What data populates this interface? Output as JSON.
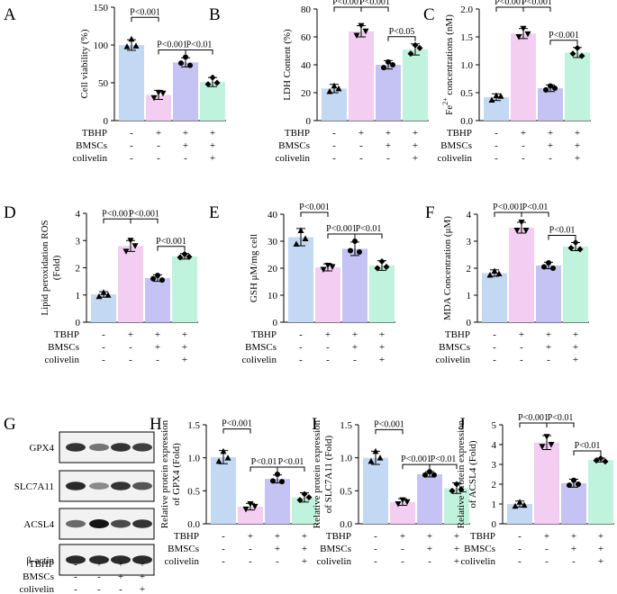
{
  "figure": {
    "row_labels": [
      "TBHP",
      "BMSCs",
      "colivelin"
    ],
    "signs": [
      [
        "-",
        "+",
        "+",
        "+"
      ],
      [
        "-",
        "-",
        "+",
        "+"
      ],
      [
        "-",
        "-",
        "-",
        "+"
      ]
    ],
    "colors": {
      "bar1": "#c3d9f3",
      "bar2": "#f4cdf2",
      "bar3": "#c4c3f4",
      "bar4": "#bff3dd",
      "error": "#000000"
    }
  },
  "chart_data": [
    {
      "panel": "A",
      "type": "bar",
      "ylabel": "Cell viability (%)",
      "ylim": [
        0,
        150
      ],
      "ticks": [
        0,
        50,
        100,
        150
      ],
      "values": [
        100,
        34,
        77,
        51
      ],
      "errors": [
        7,
        6,
        6,
        6
      ],
      "points": [
        [
          108,
          98,
          99
        ],
        [
          37,
          30,
          36
        ],
        [
          84,
          76,
          73
        ],
        [
          57,
          48,
          50
        ]
      ],
      "brackets": [
        {
          "from": 0,
          "to": 1,
          "label": "P<0.001",
          "level": 1
        },
        {
          "from": 1,
          "to": 2,
          "label": "P<0.001",
          "level": 0
        },
        {
          "from": 2,
          "to": 3,
          "label": "P<0.01",
          "level": 0
        }
      ]
    },
    {
      "panel": "B",
      "type": "bar",
      "ylabel": "LDH Content (%)",
      "ylim": [
        0,
        80
      ],
      "ticks": [
        0,
        20,
        40,
        60,
        80
      ],
      "values": [
        23,
        64,
        40,
        51
      ],
      "errors": [
        3,
        4,
        3,
        4
      ],
      "points": [
        [
          25,
          21,
          23
        ],
        [
          68,
          61,
          64
        ],
        [
          42,
          38,
          40
        ],
        [
          54,
          48,
          52
        ]
      ],
      "brackets": [
        {
          "from": 0,
          "to": 1,
          "label": "P<0.001",
          "level": 1
        },
        {
          "from": 1,
          "to": 2,
          "label": "P<0.001",
          "level": 1
        },
        {
          "from": 2,
          "to": 3,
          "label": "P<0.05",
          "level": 0
        }
      ]
    },
    {
      "panel": "C",
      "type": "bar",
      "ylabel": "Fe2+ concentrations (nM)",
      "ylabel_parts": [
        "Fe",
        "2+",
        " concentrations (nM)"
      ],
      "ylim": [
        0,
        2.0
      ],
      "ticks": [
        0.0,
        0.5,
        1.0,
        1.5,
        2.0
      ],
      "values": [
        0.42,
        1.56,
        0.58,
        1.22
      ],
      "errors": [
        0.06,
        0.09,
        0.06,
        0.09
      ],
      "points": [
        [
          0.45,
          0.37,
          0.44
        ],
        [
          1.65,
          1.5,
          1.55
        ],
        [
          0.62,
          0.55,
          0.58
        ],
        [
          1.3,
          1.2,
          1.16
        ]
      ],
      "brackets": [
        {
          "from": 0,
          "to": 1,
          "label": "P<0.001",
          "level": 1
        },
        {
          "from": 1,
          "to": 2,
          "label": "P<0.001",
          "level": 1
        },
        {
          "from": 2,
          "to": 3,
          "label": "P<0.001",
          "level": 0
        }
      ]
    },
    {
      "panel": "D",
      "type": "bar",
      "ylabel": "Lipid peroxidation ROS (Fold)",
      "ylabel_lines": [
        "Lipid peroxidation ROS",
        "(Fold)"
      ],
      "ylim": [
        0,
        4
      ],
      "ticks": [
        0,
        1,
        2,
        3,
        4
      ],
      "values": [
        1.02,
        2.8,
        1.62,
        2.42
      ],
      "errors": [
        0.1,
        0.2,
        0.12,
        0.1
      ],
      "points": [
        [
          1.1,
          0.95,
          1.0
        ],
        [
          3.0,
          2.6,
          2.8
        ],
        [
          1.72,
          1.6,
          1.55
        ],
        [
          2.5,
          2.38,
          2.4
        ]
      ],
      "brackets": [
        {
          "from": 0,
          "to": 1,
          "label": "P<0.001",
          "level": 1
        },
        {
          "from": 1,
          "to": 2,
          "label": "P<0.001",
          "level": 1
        },
        {
          "from": 2,
          "to": 3,
          "label": "P<0.001",
          "level": 0
        }
      ]
    },
    {
      "panel": "E",
      "type": "bar",
      "ylabel": "GSH μM/mg cell",
      "ylim": [
        0,
        40
      ],
      "ticks": [
        0,
        10,
        20,
        30,
        40
      ],
      "values": [
        31.5,
        20.3,
        27.2,
        21.0
      ],
      "errors": [
        3.2,
        1.3,
        2.5,
        1.8
      ],
      "points": [
        [
          34,
          29,
          31
        ],
        [
          21,
          19.5,
          20.5
        ],
        [
          30,
          26.5,
          26
        ],
        [
          22.5,
          20,
          20.5
        ]
      ],
      "brackets": [
        {
          "from": 0,
          "to": 1,
          "label": "P<0.001",
          "level": 1
        },
        {
          "from": 1,
          "to": 2,
          "label": "P<0.001",
          "level": 0
        },
        {
          "from": 2,
          "to": 3,
          "label": "P<0.01",
          "level": 0
        }
      ]
    },
    {
      "panel": "F",
      "type": "bar",
      "ylabel": "MDA Concentration (μM)",
      "ylim": [
        0,
        4
      ],
      "ticks": [
        0,
        1,
        2,
        3,
        4
      ],
      "values": [
        1.82,
        3.5,
        2.1,
        2.8
      ],
      "errors": [
        0.12,
        0.2,
        0.12,
        0.15
      ],
      "points": [
        [
          1.9,
          1.75,
          1.8
        ],
        [
          3.7,
          3.4,
          3.4
        ],
        [
          2.2,
          2.05,
          2.0
        ],
        [
          2.95,
          2.75,
          2.7
        ]
      ],
      "brackets": [
        {
          "from": 0,
          "to": 1,
          "label": "P<0.001",
          "level": 1
        },
        {
          "from": 1,
          "to": 2,
          "label": "P<0.01",
          "level": 1
        },
        {
          "from": 2,
          "to": 3,
          "label": "P<0.01",
          "level": 0
        }
      ]
    },
    {
      "panel": "H",
      "type": "bar",
      "ylabel": "Relative protein expression of GPX4 (Fold)",
      "ylabel_lines": [
        "Relative protein expression",
        "of GPX4 (Fold)"
      ],
      "ylim": [
        0,
        1.5
      ],
      "ticks": [
        0.0,
        0.5,
        1.0,
        1.5
      ],
      "values": [
        1.01,
        0.26,
        0.68,
        0.4
      ],
      "errors": [
        0.1,
        0.05,
        0.06,
        0.07
      ],
      "points": [
        [
          1.1,
          0.95,
          1.0
        ],
        [
          0.3,
          0.22,
          0.26
        ],
        [
          0.75,
          0.65,
          0.64
        ],
        [
          0.45,
          0.36,
          0.4
        ]
      ],
      "brackets": [
        {
          "from": 0,
          "to": 1,
          "label": "P<0.001",
          "level": 1
        },
        {
          "from": 1,
          "to": 2,
          "label": "P<0.01",
          "level": 0
        },
        {
          "from": 2,
          "to": 3,
          "label": "P<0.01",
          "level": 0
        }
      ]
    },
    {
      "panel": "I",
      "type": "bar",
      "ylabel": "Relative protein expression of SLC7A11 (Fold)",
      "ylabel_lines": [
        "Relative protein expression",
        "of SLC7A11 (Fold)"
      ],
      "ylim": [
        0,
        1.5
      ],
      "ticks": [
        0.0,
        0.5,
        1.0,
        1.5
      ],
      "values": [
        1.0,
        0.33,
        0.75,
        0.54
      ],
      "errors": [
        0.1,
        0.05,
        0.04,
        0.08
      ],
      "points": [
        [
          1.1,
          0.95,
          1.0
        ],
        [
          0.36,
          0.3,
          0.33
        ],
        [
          0.79,
          0.74,
          0.74
        ],
        [
          0.6,
          0.5,
          0.52
        ]
      ],
      "brackets": [
        {
          "from": 0,
          "to": 1,
          "label": "P<0.001",
          "level": 1
        },
        {
          "from": 1,
          "to": 2,
          "label": "P<0.001",
          "level": 0
        },
        {
          "from": 2,
          "to": 3,
          "label": "P<0.01",
          "level": 0
        }
      ]
    },
    {
      "panel": "J",
      "type": "bar",
      "ylabel": "Relative protein expression of ACSL4 (Fold)",
      "ylabel_lines": [
        "Relative protein expression",
        "of ACSL4 (Fold)"
      ],
      "ylim": [
        0,
        5
      ],
      "ticks": [
        0,
        1,
        2,
        3,
        4,
        5
      ],
      "values": [
        1.0,
        4.1,
        2.05,
        3.22
      ],
      "errors": [
        0.15,
        0.35,
        0.2,
        0.1
      ],
      "points": [
        [
          1.1,
          0.9,
          0.95
        ],
        [
          4.4,
          3.9,
          4.0
        ],
        [
          2.2,
          1.95,
          2.0
        ],
        [
          3.3,
          3.2,
          3.15
        ]
      ],
      "brackets": [
        {
          "from": 0,
          "to": 1,
          "label": "P<0.001",
          "level": 1
        },
        {
          "from": 1,
          "to": 2,
          "label": "P<0.01",
          "level": 1
        },
        {
          "from": 2,
          "to": 3,
          "label": "P<0.01",
          "level": 0
        }
      ]
    }
  ],
  "blot": {
    "panel": "G",
    "proteins": [
      "GPX4",
      "SLC7A11",
      "ACSL4",
      "β-actin"
    ],
    "intensity": [
      [
        0.85,
        0.55,
        0.85,
        0.8
      ],
      [
        0.9,
        0.45,
        0.85,
        0.7
      ],
      [
        0.6,
        1.0,
        0.75,
        0.85
      ],
      [
        0.9,
        0.9,
        0.9,
        0.9
      ]
    ]
  }
}
